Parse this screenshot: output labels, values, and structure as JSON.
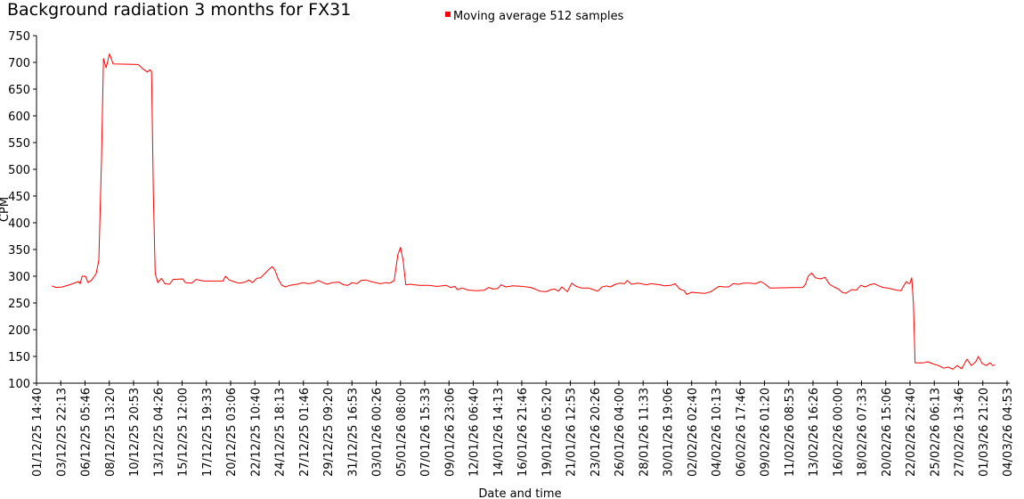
{
  "chart_data": {
    "type": "line",
    "title": "Background radiation 3 months for FX31",
    "xlabel": "Date and time",
    "ylabel": "CPM",
    "ylim": [
      100,
      750
    ],
    "yticks": [
      100,
      150,
      200,
      250,
      300,
      350,
      400,
      450,
      500,
      550,
      600,
      650,
      700,
      750
    ],
    "grid": false,
    "legend_position": "top-center",
    "x_units": "tick-interval index (0 = first tick label, 40 = last tick label)",
    "xticks": [
      "01/12/25 14:40",
      "03/12/25 22:13",
      "06/12/25 05:46",
      "08/12/25 13:20",
      "10/12/25 20:53",
      "13/12/25 04:26",
      "15/12/25 12:00",
      "17/12/25 19:33",
      "20/12/25 03:06",
      "22/12/25 10:40",
      "24/12/25 18:13",
      "27/12/25 01:46",
      "29/12/25 09:20",
      "31/12/25 16:53",
      "03/01/26 00:26",
      "05/01/26 08:00",
      "07/01/26 15:33",
      "09/01/26 23:06",
      "12/01/26 06:40",
      "14/01/26 14:13",
      "16/01/26 21:46",
      "19/01/26 05:20",
      "21/01/26 12:53",
      "23/01/26 20:26",
      "26/01/26 04:00",
      "28/01/26 11:33",
      "30/01/26 19:06",
      "02/02/26 02:40",
      "04/02/26 10:13",
      "06/02/26 17:46",
      "09/02/26 01:20",
      "11/02/26 08:53",
      "13/02/26 16:26",
      "16/02/26 00:00",
      "18/02/26 07:33",
      "20/02/26 15:06",
      "22/02/26 22:40",
      "25/02/26 06:13",
      "27/02/26 13:46",
      "01/03/26 21:20",
      "04/03/26 04:53"
    ],
    "series": [
      {
        "name": "Moving average 512 samples",
        "color": "#ff0000",
        "points": [
          [
            0.63,
            282
          ],
          [
            0.8,
            279
          ],
          [
            1.07,
            280
          ],
          [
            1.43,
            285
          ],
          [
            1.73,
            290
          ],
          [
            1.8,
            286
          ],
          [
            1.88,
            300
          ],
          [
            2.02,
            300
          ],
          [
            2.13,
            288
          ],
          [
            2.28,
            293
          ],
          [
            2.46,
            305
          ],
          [
            2.57,
            330
          ],
          [
            2.68,
            520
          ],
          [
            2.76,
            707
          ],
          [
            2.87,
            690
          ],
          [
            3.01,
            716
          ],
          [
            3.16,
            697
          ],
          [
            4.19,
            696
          ],
          [
            4.38,
            688
          ],
          [
            4.56,
            682
          ],
          [
            4.67,
            686
          ],
          [
            4.74,
            683
          ],
          [
            4.82,
            450
          ],
          [
            4.89,
            305
          ],
          [
            5.0,
            288
          ],
          [
            5.15,
            296
          ],
          [
            5.29,
            286
          ],
          [
            5.48,
            285
          ],
          [
            5.63,
            294
          ],
          [
            6.03,
            295
          ],
          [
            6.14,
            288
          ],
          [
            6.4,
            287
          ],
          [
            6.58,
            294
          ],
          [
            6.88,
            291
          ],
          [
            7.68,
            291
          ],
          [
            7.79,
            300
          ],
          [
            7.94,
            293
          ],
          [
            8.13,
            290
          ],
          [
            8.35,
            287
          ],
          [
            8.6,
            289
          ],
          [
            8.75,
            293
          ],
          [
            8.9,
            288
          ],
          [
            9.08,
            296
          ],
          [
            9.23,
            297
          ],
          [
            9.41,
            305
          ],
          [
            9.56,
            312
          ],
          [
            9.71,
            318
          ],
          [
            9.82,
            312
          ],
          [
            9.96,
            295
          ],
          [
            10.11,
            283
          ],
          [
            10.26,
            280
          ],
          [
            10.44,
            283
          ],
          [
            10.74,
            285
          ],
          [
            10.99,
            288
          ],
          [
            11.21,
            286
          ],
          [
            11.43,
            288
          ],
          [
            11.62,
            292
          ],
          [
            11.8,
            288
          ],
          [
            11.99,
            285
          ],
          [
            12.17,
            288
          ],
          [
            12.46,
            289
          ],
          [
            12.65,
            284
          ],
          [
            12.83,
            283
          ],
          [
            13.01,
            288
          ],
          [
            13.2,
            286
          ],
          [
            13.38,
            292
          ],
          [
            13.57,
            293
          ],
          [
            13.79,
            290
          ],
          [
            13.97,
            288
          ],
          [
            14.19,
            286
          ],
          [
            14.38,
            288
          ],
          [
            14.56,
            287
          ],
          [
            14.74,
            292
          ],
          [
            14.89,
            340
          ],
          [
            15.0,
            354
          ],
          [
            15.11,
            330
          ],
          [
            15.22,
            284
          ],
          [
            15.4,
            285
          ],
          [
            15.77,
            283
          ],
          [
            16.14,
            283
          ],
          [
            16.51,
            281
          ],
          [
            16.88,
            283
          ],
          [
            17.06,
            279
          ],
          [
            17.24,
            281
          ],
          [
            17.35,
            275
          ],
          [
            17.54,
            278
          ],
          [
            17.79,
            274
          ],
          [
            18.16,
            273
          ],
          [
            18.46,
            274
          ],
          [
            18.64,
            279
          ],
          [
            18.82,
            276
          ],
          [
            19.01,
            277
          ],
          [
            19.15,
            284
          ],
          [
            19.34,
            280
          ],
          [
            19.63,
            282
          ],
          [
            20.0,
            281
          ],
          [
            20.37,
            279
          ],
          [
            20.55,
            276
          ],
          [
            20.74,
            272
          ],
          [
            20.99,
            271
          ],
          [
            21.21,
            275
          ],
          [
            21.36,
            276
          ],
          [
            21.51,
            272
          ],
          [
            21.65,
            280
          ],
          [
            21.88,
            271
          ],
          [
            22.06,
            287
          ],
          [
            22.24,
            281
          ],
          [
            22.46,
            278
          ],
          [
            22.76,
            278
          ],
          [
            22.94,
            275
          ],
          [
            23.13,
            272
          ],
          [
            23.31,
            280
          ],
          [
            23.49,
            282
          ],
          [
            23.64,
            280
          ],
          [
            23.86,
            285
          ],
          [
            24.04,
            287
          ],
          [
            24.23,
            286
          ],
          [
            24.34,
            292
          ],
          [
            24.52,
            285
          ],
          [
            24.78,
            287
          ],
          [
            25.15,
            284
          ],
          [
            25.33,
            286
          ],
          [
            25.7,
            284
          ],
          [
            25.88,
            282
          ],
          [
            26.14,
            283
          ],
          [
            26.32,
            286
          ],
          [
            26.51,
            276
          ],
          [
            26.69,
            273
          ],
          [
            26.8,
            266
          ],
          [
            26.99,
            270
          ],
          [
            27.24,
            269
          ],
          [
            27.54,
            268
          ],
          [
            27.79,
            271
          ],
          [
            27.98,
            277
          ],
          [
            28.13,
            281
          ],
          [
            28.35,
            280
          ],
          [
            28.53,
            280
          ],
          [
            28.71,
            286
          ],
          [
            28.93,
            285
          ],
          [
            29.15,
            287
          ],
          [
            29.38,
            287
          ],
          [
            29.63,
            286
          ],
          [
            29.85,
            290
          ],
          [
            30.04,
            285
          ],
          [
            30.22,
            278
          ],
          [
            31.58,
            279
          ],
          [
            31.69,
            285
          ],
          [
            31.8,
            300
          ],
          [
            31.95,
            306
          ],
          [
            32.1,
            297
          ],
          [
            32.32,
            295
          ],
          [
            32.5,
            298
          ],
          [
            32.68,
            285
          ],
          [
            32.87,
            280
          ],
          [
            33.05,
            276
          ],
          [
            33.2,
            270
          ],
          [
            33.35,
            268
          ],
          [
            33.6,
            275
          ],
          [
            33.79,
            274
          ],
          [
            33.97,
            283
          ],
          [
            34.15,
            280
          ],
          [
            34.34,
            284
          ],
          [
            34.52,
            286
          ],
          [
            34.71,
            282
          ],
          [
            34.89,
            279
          ],
          [
            35.07,
            278
          ],
          [
            35.26,
            276
          ],
          [
            35.44,
            274
          ],
          [
            35.63,
            273
          ],
          [
            35.74,
            282
          ],
          [
            35.85,
            290
          ],
          [
            35.92,
            287
          ],
          [
            35.99,
            286
          ],
          [
            36.07,
            297
          ],
          [
            36.14,
            250
          ],
          [
            36.21,
            138
          ],
          [
            36.54,
            138
          ],
          [
            36.73,
            140
          ],
          [
            36.95,
            136
          ],
          [
            37.17,
            133
          ],
          [
            37.39,
            128
          ],
          [
            37.57,
            130
          ],
          [
            37.76,
            126
          ],
          [
            37.94,
            133
          ],
          [
            38.13,
            127
          ],
          [
            38.35,
            145
          ],
          [
            38.53,
            133
          ],
          [
            38.71,
            140
          ],
          [
            38.82,
            150
          ],
          [
            38.97,
            137
          ],
          [
            39.15,
            133
          ],
          [
            39.3,
            138
          ],
          [
            39.41,
            133
          ],
          [
            39.5,
            134
          ]
        ]
      }
    ]
  }
}
